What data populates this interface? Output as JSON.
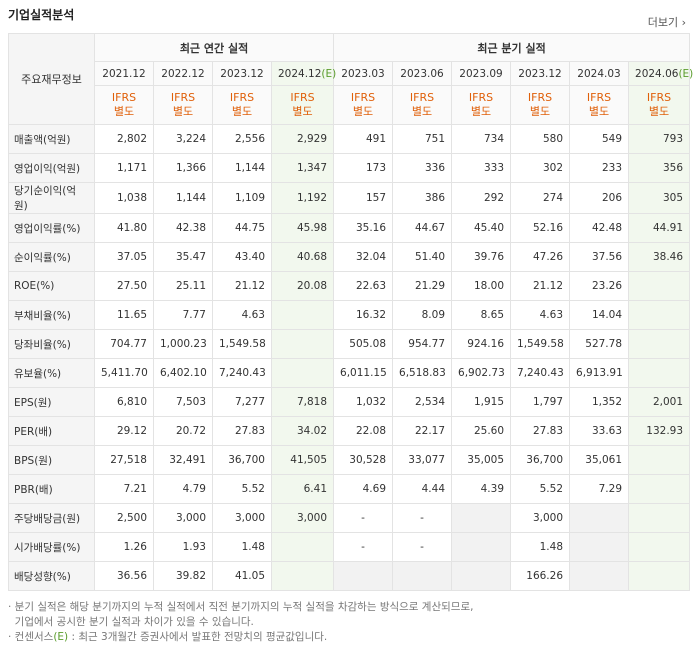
{
  "title": "기업실적분석",
  "more_label": "더보기",
  "header": {
    "row_label": "주요재무정보",
    "annual_group": "최근 연간 실적",
    "quarter_group": "최근 분기 실적",
    "annual_periods": [
      "2021.12",
      "2022.12",
      "2023.12",
      "2024.12"
    ],
    "annual_est_suffix": "(E)",
    "quarter_periods": [
      "2023.03",
      "2023.06",
      "2023.09",
      "2023.12",
      "2024.03",
      "2024.06"
    ],
    "quarter_est_suffix": "(E)",
    "ifrs": "IFRS",
    "separate": "별도"
  },
  "rows": [
    {
      "label": "매출액(억원)",
      "a": [
        "2,802",
        "3,224",
        "2,556",
        "2,929"
      ],
      "q": [
        "491",
        "751",
        "734",
        "580",
        "549",
        "793"
      ]
    },
    {
      "label": "영업이익(억원)",
      "a": [
        "1,171",
        "1,366",
        "1,144",
        "1,347"
      ],
      "q": [
        "173",
        "336",
        "333",
        "302",
        "233",
        "356"
      ]
    },
    {
      "label": "당기순이익(억원)",
      "a": [
        "1,038",
        "1,144",
        "1,109",
        "1,192"
      ],
      "q": [
        "157",
        "386",
        "292",
        "274",
        "206",
        "305"
      ]
    },
    {
      "label": "영업이익률(%)",
      "a": [
        "41.80",
        "42.38",
        "44.75",
        "45.98"
      ],
      "q": [
        "35.16",
        "44.67",
        "45.40",
        "52.16",
        "42.48",
        "44.91"
      ]
    },
    {
      "label": "순이익률(%)",
      "a": [
        "37.05",
        "35.47",
        "43.40",
        "40.68"
      ],
      "q": [
        "32.04",
        "51.40",
        "39.76",
        "47.26",
        "37.56",
        "38.46"
      ]
    },
    {
      "label": "ROE(%)",
      "a": [
        "27.50",
        "25.11",
        "21.12",
        "20.08"
      ],
      "q": [
        "22.63",
        "21.29",
        "18.00",
        "21.12",
        "23.26",
        ""
      ]
    },
    {
      "label": "부채비율(%)",
      "a": [
        "11.65",
        "7.77",
        "4.63",
        ""
      ],
      "q": [
        "16.32",
        "8.09",
        "8.65",
        "4.63",
        "14.04",
        ""
      ]
    },
    {
      "label": "당좌비율(%)",
      "a": [
        "704.77",
        "1,000.23",
        "1,549.58",
        ""
      ],
      "q": [
        "505.08",
        "954.77",
        "924.16",
        "1,549.58",
        "527.78",
        ""
      ]
    },
    {
      "label": "유보율(%)",
      "a": [
        "5,411.70",
        "6,402.10",
        "7,240.43",
        ""
      ],
      "q": [
        "6,011.15",
        "6,518.83",
        "6,902.73",
        "7,240.43",
        "6,913.91",
        ""
      ]
    },
    {
      "label": "EPS(원)",
      "a": [
        "6,810",
        "7,503",
        "7,277",
        "7,818"
      ],
      "q": [
        "1,032",
        "2,534",
        "1,915",
        "1,797",
        "1,352",
        "2,001"
      ]
    },
    {
      "label": "PER(배)",
      "a": [
        "29.12",
        "20.72",
        "27.83",
        "34.02"
      ],
      "q": [
        "22.08",
        "22.17",
        "25.60",
        "27.83",
        "33.63",
        "132.93"
      ]
    },
    {
      "label": "BPS(원)",
      "a": [
        "27,518",
        "32,491",
        "36,700",
        "41,505"
      ],
      "q": [
        "30,528",
        "33,077",
        "35,005",
        "36,700",
        "35,061",
        ""
      ]
    },
    {
      "label": "PBR(배)",
      "a": [
        "7.21",
        "4.79",
        "5.52",
        "6.41"
      ],
      "q": [
        "4.69",
        "4.44",
        "4.39",
        "5.52",
        "7.29",
        ""
      ]
    },
    {
      "label": "주당배당금(원)",
      "a": [
        "2,500",
        "3,000",
        "3,000",
        "3,000"
      ],
      "q": [
        "-",
        "-",
        "",
        "3,000",
        "",
        ""
      ]
    },
    {
      "label": "시가배당률(%)",
      "a": [
        "1.26",
        "1.93",
        "1.48",
        ""
      ],
      "q": [
        "-",
        "-",
        "",
        "1.48",
        "",
        ""
      ]
    },
    {
      "label": "배당성향(%)",
      "a": [
        "36.56",
        "39.82",
        "41.05",
        ""
      ],
      "q": [
        "",
        "",
        "",
        "166.26",
        "",
        ""
      ]
    }
  ],
  "notes": {
    "line1": "· 분기 실적은 해당 분기까지의 누적 실적에서 직전 분기까지의 누적 실적을 차감하는 방식으로 계산되므로,",
    "line2": "  기업에서 공시한 분기 실적과 차이가 있을 수 있습니다.",
    "line3_prefix": "· 컨센서스",
    "line3_est": "(E)",
    "line3_suffix": " : 최근 3개월간 증권사에서 발표한 전망치의 평균값입니다."
  },
  "colors": {
    "ifrs": "#e0600a",
    "estimate_bg": "#f2f8ee",
    "estimate_text": "#5a9c2c"
  }
}
